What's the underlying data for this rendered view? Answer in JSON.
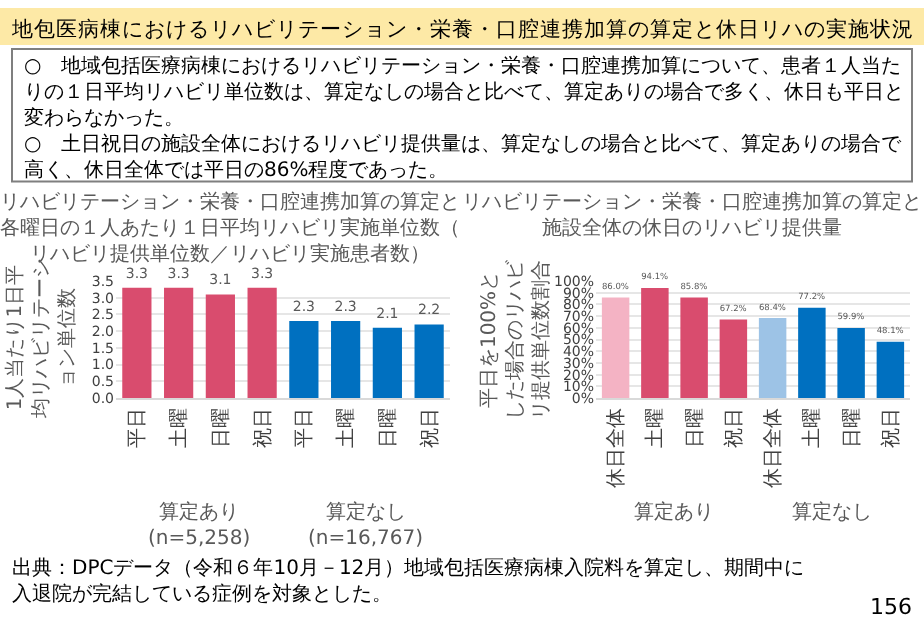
{
  "chart_data": [
    {
      "type": "bar",
      "title": "リハビリテーション・栄養・口腔連携加算の算定と各曜日の１人あたり１日平均リハビリ実施単位数（リハビリ提供単位数／リハビリ実施患者数）",
      "ylabel": "1人当たり1日平均リハビリテーション単位数",
      "categories": [
        "平日",
        "土曜",
        "日曜",
        "祝日",
        "平日",
        "土曜",
        "日曜",
        "祝日"
      ],
      "values": [
        3.3,
        3.3,
        3.1,
        3.3,
        2.3,
        2.3,
        2.1,
        2.2
      ],
      "colors": [
        "#d94c6e",
        "#d94c6e",
        "#d94c6e",
        "#d94c6e",
        "#0070c0",
        "#0070c0",
        "#0070c0",
        "#0070c0"
      ],
      "data_labels": true,
      "ylim": [
        0,
        3.5
      ],
      "yticks": [
        {
          "value": 0,
          "label": "0.0"
        },
        {
          "value": 0.5,
          "label": "0.5"
        },
        {
          "value": 1,
          "label": "1.0"
        },
        {
          "value": 1.5,
          "label": "1.5"
        },
        {
          "value": 2,
          "label": "2.0"
        },
        {
          "value": 2.5,
          "label": "2.5"
        },
        {
          "value": 3,
          "label": "3.0"
        },
        {
          "value": 3.5,
          "label": "3.5"
        }
      ],
      "grid": "y",
      "annotations": [
        "算定あり(n=5,258)",
        "算定なし(n=16,767)",
        "地包医病棟におけるリハビリテーション・栄養・口腔連携加算の算定と休日リハの実施状況",
        "○　地域包括医療病棟におけるリハビリテーション・栄養・口腔連携加算について、患者１人当たりの１日平均リハビリ単位数は、算定なしの場合と比べて、算定ありの場合で多く、休日も平日と変わらなかった。",
        "○　土日祝日の施設全体におけるリハビリ提供量は、算定なしの場合と比べて、算定ありの場合で高く、休日全体では平日の86%程度であった。",
        "出典：DPCデータ（令和６年10月－12月）地域包括医療病棟入院料を算定し、期間中に入退院が完結している症例を対象とした。",
        "156"
      ]
    },
    {
      "type": "bar",
      "title": "リハビリテーション・栄養・口腔連携加算の算定と施設全体の休日のリハビリ提供量",
      "ylabel": "平日を100%とした場合のリハビリ提供単位数割合",
      "categories": [
        "休日全体",
        "土曜",
        "日曜",
        "祝日",
        "休日全体",
        "土曜",
        "日曜",
        "祝日"
      ],
      "values": [
        86.0,
        94.1,
        85.8,
        67.2,
        68.4,
        77.2,
        59.9,
        48.1
      ],
      "value_labels": [
        "86.0%",
        "94.1%",
        "85.8%",
        "67.2%",
        "68.4%",
        "77.2%",
        "59.9%",
        "48.1%"
      ],
      "colors": [
        "#f4b3c4",
        "#d94c6e",
        "#d94c6e",
        "#d94c6e",
        "#9dc3e6",
        "#0070c0",
        "#0070c0",
        "#0070c0"
      ],
      "ylim": [
        0,
        100
      ],
      "yticks": [
        {
          "value": 0,
          "label": "0%"
        },
        {
          "value": 10,
          "label": "10%"
        },
        {
          "value": 20,
          "label": "20%"
        },
        {
          "value": 30,
          "label": "30%"
        },
        {
          "value": 40,
          "label": "40%"
        },
        {
          "value": 50,
          "label": "50%"
        },
        {
          "value": 60,
          "label": "60%"
        },
        {
          "value": 70,
          "label": "70%"
        },
        {
          "value": 80,
          "label": "80%"
        },
        {
          "value": 90,
          "label": "90%"
        },
        {
          "value": 100,
          "label": "100%"
        }
      ],
      "grid": "y",
      "annotations": [
        "算定あり",
        "算定なし"
      ]
    }
  ]
}
